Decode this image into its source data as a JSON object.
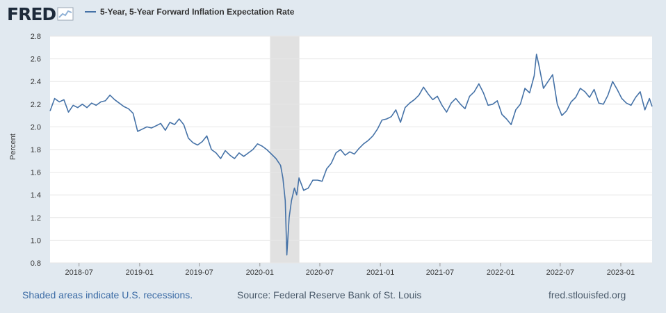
{
  "header": {
    "logo_text": "FRED",
    "logo_icon": "chart-trend-icon",
    "series_title": "5-Year, 5-Year Forward Inflation Expectation Rate"
  },
  "footer": {
    "recession_note": "Shaded areas indicate U.S. recessions.",
    "source": "Source: Federal Reserve Bank of St. Louis",
    "site": "fred.stlouisfed.org"
  },
  "colors": {
    "line": "#4572a7",
    "background": "#e1e9f0",
    "plot": "#ffffff",
    "recession": "#e1e1e1",
    "grid": "#e6e6e6"
  },
  "chart_data": {
    "type": "line",
    "title": "",
    "ylabel": "Percent",
    "xlabel": "",
    "ylim": [
      0.8,
      2.8
    ],
    "yticks": [
      0.8,
      1.0,
      1.2,
      1.4,
      1.6,
      1.8,
      2.0,
      2.2,
      2.4,
      2.6,
      2.8
    ],
    "xlim": [
      "2018-04-04",
      "2023-04-06"
    ],
    "xticks": [
      "2018-07",
      "2019-01",
      "2019-07",
      "2020-01",
      "2020-07",
      "2021-01",
      "2021-07",
      "2022-01",
      "2022-07",
      "2023-01"
    ],
    "grid": true,
    "recessions": [
      {
        "start": "2020-02-01",
        "end": "2020-04-30"
      }
    ],
    "series": [
      {
        "name": "5-Year, 5-Year Forward Inflation Expectation Rate",
        "points": [
          [
            "2018-04-04",
            2.14
          ],
          [
            "2018-04-18",
            2.25
          ],
          [
            "2018-05-02",
            2.22
          ],
          [
            "2018-05-16",
            2.24
          ],
          [
            "2018-05-30",
            2.13
          ],
          [
            "2018-06-13",
            2.19
          ],
          [
            "2018-06-27",
            2.17
          ],
          [
            "2018-07-11",
            2.2
          ],
          [
            "2018-07-25",
            2.17
          ],
          [
            "2018-08-08",
            2.21
          ],
          [
            "2018-08-22",
            2.19
          ],
          [
            "2018-09-05",
            2.22
          ],
          [
            "2018-09-19",
            2.23
          ],
          [
            "2018-10-03",
            2.28
          ],
          [
            "2018-10-17",
            2.24
          ],
          [
            "2018-10-31",
            2.21
          ],
          [
            "2018-11-14",
            2.18
          ],
          [
            "2018-11-28",
            2.16
          ],
          [
            "2018-12-12",
            2.12
          ],
          [
            "2018-12-26",
            1.96
          ],
          [
            "2019-01-09",
            1.98
          ],
          [
            "2019-01-23",
            2.0
          ],
          [
            "2019-02-06",
            1.99
          ],
          [
            "2019-02-20",
            2.01
          ],
          [
            "2019-03-06",
            2.03
          ],
          [
            "2019-03-20",
            1.97
          ],
          [
            "2019-04-03",
            2.04
          ],
          [
            "2019-04-17",
            2.02
          ],
          [
            "2019-05-01",
            2.07
          ],
          [
            "2019-05-15",
            2.02
          ],
          [
            "2019-05-29",
            1.9
          ],
          [
            "2019-06-12",
            1.86
          ],
          [
            "2019-06-26",
            1.84
          ],
          [
            "2019-07-10",
            1.87
          ],
          [
            "2019-07-24",
            1.92
          ],
          [
            "2019-08-07",
            1.8
          ],
          [
            "2019-08-21",
            1.77
          ],
          [
            "2019-09-04",
            1.72
          ],
          [
            "2019-09-18",
            1.79
          ],
          [
            "2019-10-02",
            1.75
          ],
          [
            "2019-10-16",
            1.72
          ],
          [
            "2019-10-30",
            1.77
          ],
          [
            "2019-11-13",
            1.74
          ],
          [
            "2019-11-27",
            1.77
          ],
          [
            "2019-12-11",
            1.8
          ],
          [
            "2019-12-25",
            1.85
          ],
          [
            "2020-01-08",
            1.83
          ],
          [
            "2020-01-22",
            1.8
          ],
          [
            "2020-02-05",
            1.76
          ],
          [
            "2020-02-19",
            1.72
          ],
          [
            "2020-03-04",
            1.66
          ],
          [
            "2020-03-11",
            1.55
          ],
          [
            "2020-03-18",
            1.35
          ],
          [
            "2020-03-23",
            0.87
          ],
          [
            "2020-03-30",
            1.2
          ],
          [
            "2020-04-06",
            1.35
          ],
          [
            "2020-04-15",
            1.46
          ],
          [
            "2020-04-22",
            1.4
          ],
          [
            "2020-04-29",
            1.55
          ],
          [
            "2020-05-13",
            1.44
          ],
          [
            "2020-05-27",
            1.46
          ],
          [
            "2020-06-10",
            1.53
          ],
          [
            "2020-06-24",
            1.53
          ],
          [
            "2020-07-08",
            1.52
          ],
          [
            "2020-07-22",
            1.63
          ],
          [
            "2020-08-05",
            1.68
          ],
          [
            "2020-08-19",
            1.77
          ],
          [
            "2020-09-02",
            1.8
          ],
          [
            "2020-09-16",
            1.75
          ],
          [
            "2020-09-30",
            1.78
          ],
          [
            "2020-10-14",
            1.76
          ],
          [
            "2020-10-28",
            1.81
          ],
          [
            "2020-11-11",
            1.85
          ],
          [
            "2020-11-25",
            1.88
          ],
          [
            "2020-12-09",
            1.92
          ],
          [
            "2020-12-23",
            1.98
          ],
          [
            "2021-01-06",
            2.06
          ],
          [
            "2021-01-20",
            2.07
          ],
          [
            "2021-02-03",
            2.09
          ],
          [
            "2021-02-17",
            2.15
          ],
          [
            "2021-03-03",
            2.04
          ],
          [
            "2021-03-17",
            2.17
          ],
          [
            "2021-03-31",
            2.21
          ],
          [
            "2021-04-14",
            2.24
          ],
          [
            "2021-04-28",
            2.28
          ],
          [
            "2021-05-12",
            2.35
          ],
          [
            "2021-05-26",
            2.29
          ],
          [
            "2021-06-09",
            2.24
          ],
          [
            "2021-06-23",
            2.27
          ],
          [
            "2021-07-07",
            2.19
          ],
          [
            "2021-07-21",
            2.13
          ],
          [
            "2021-08-04",
            2.21
          ],
          [
            "2021-08-18",
            2.25
          ],
          [
            "2021-09-01",
            2.2
          ],
          [
            "2021-09-15",
            2.16
          ],
          [
            "2021-09-29",
            2.27
          ],
          [
            "2021-10-13",
            2.31
          ],
          [
            "2021-10-27",
            2.38
          ],
          [
            "2021-11-10",
            2.3
          ],
          [
            "2021-11-24",
            2.19
          ],
          [
            "2021-12-08",
            2.2
          ],
          [
            "2021-12-22",
            2.23
          ],
          [
            "2022-01-05",
            2.11
          ],
          [
            "2022-01-19",
            2.07
          ],
          [
            "2022-02-02",
            2.02
          ],
          [
            "2022-02-16",
            2.15
          ],
          [
            "2022-03-02",
            2.2
          ],
          [
            "2022-03-16",
            2.34
          ],
          [
            "2022-03-30",
            2.3
          ],
          [
            "2022-04-13",
            2.45
          ],
          [
            "2022-04-20",
            2.64
          ],
          [
            "2022-04-27",
            2.55
          ],
          [
            "2022-05-11",
            2.34
          ],
          [
            "2022-05-25",
            2.4
          ],
          [
            "2022-06-08",
            2.46
          ],
          [
            "2022-06-22",
            2.2
          ],
          [
            "2022-07-06",
            2.1
          ],
          [
            "2022-07-20",
            2.14
          ],
          [
            "2022-08-03",
            2.22
          ],
          [
            "2022-08-17",
            2.26
          ],
          [
            "2022-08-31",
            2.34
          ],
          [
            "2022-09-14",
            2.31
          ],
          [
            "2022-09-28",
            2.26
          ],
          [
            "2022-10-12",
            2.33
          ],
          [
            "2022-10-26",
            2.21
          ],
          [
            "2022-11-09",
            2.2
          ],
          [
            "2022-11-23",
            2.28
          ],
          [
            "2022-12-07",
            2.4
          ],
          [
            "2022-12-21",
            2.33
          ],
          [
            "2023-01-04",
            2.25
          ],
          [
            "2023-01-18",
            2.21
          ],
          [
            "2023-02-01",
            2.19
          ],
          [
            "2023-02-15",
            2.26
          ],
          [
            "2023-03-01",
            2.31
          ],
          [
            "2023-03-15",
            2.15
          ],
          [
            "2023-03-29",
            2.25
          ],
          [
            "2023-04-06",
            2.18
          ]
        ]
      }
    ]
  }
}
